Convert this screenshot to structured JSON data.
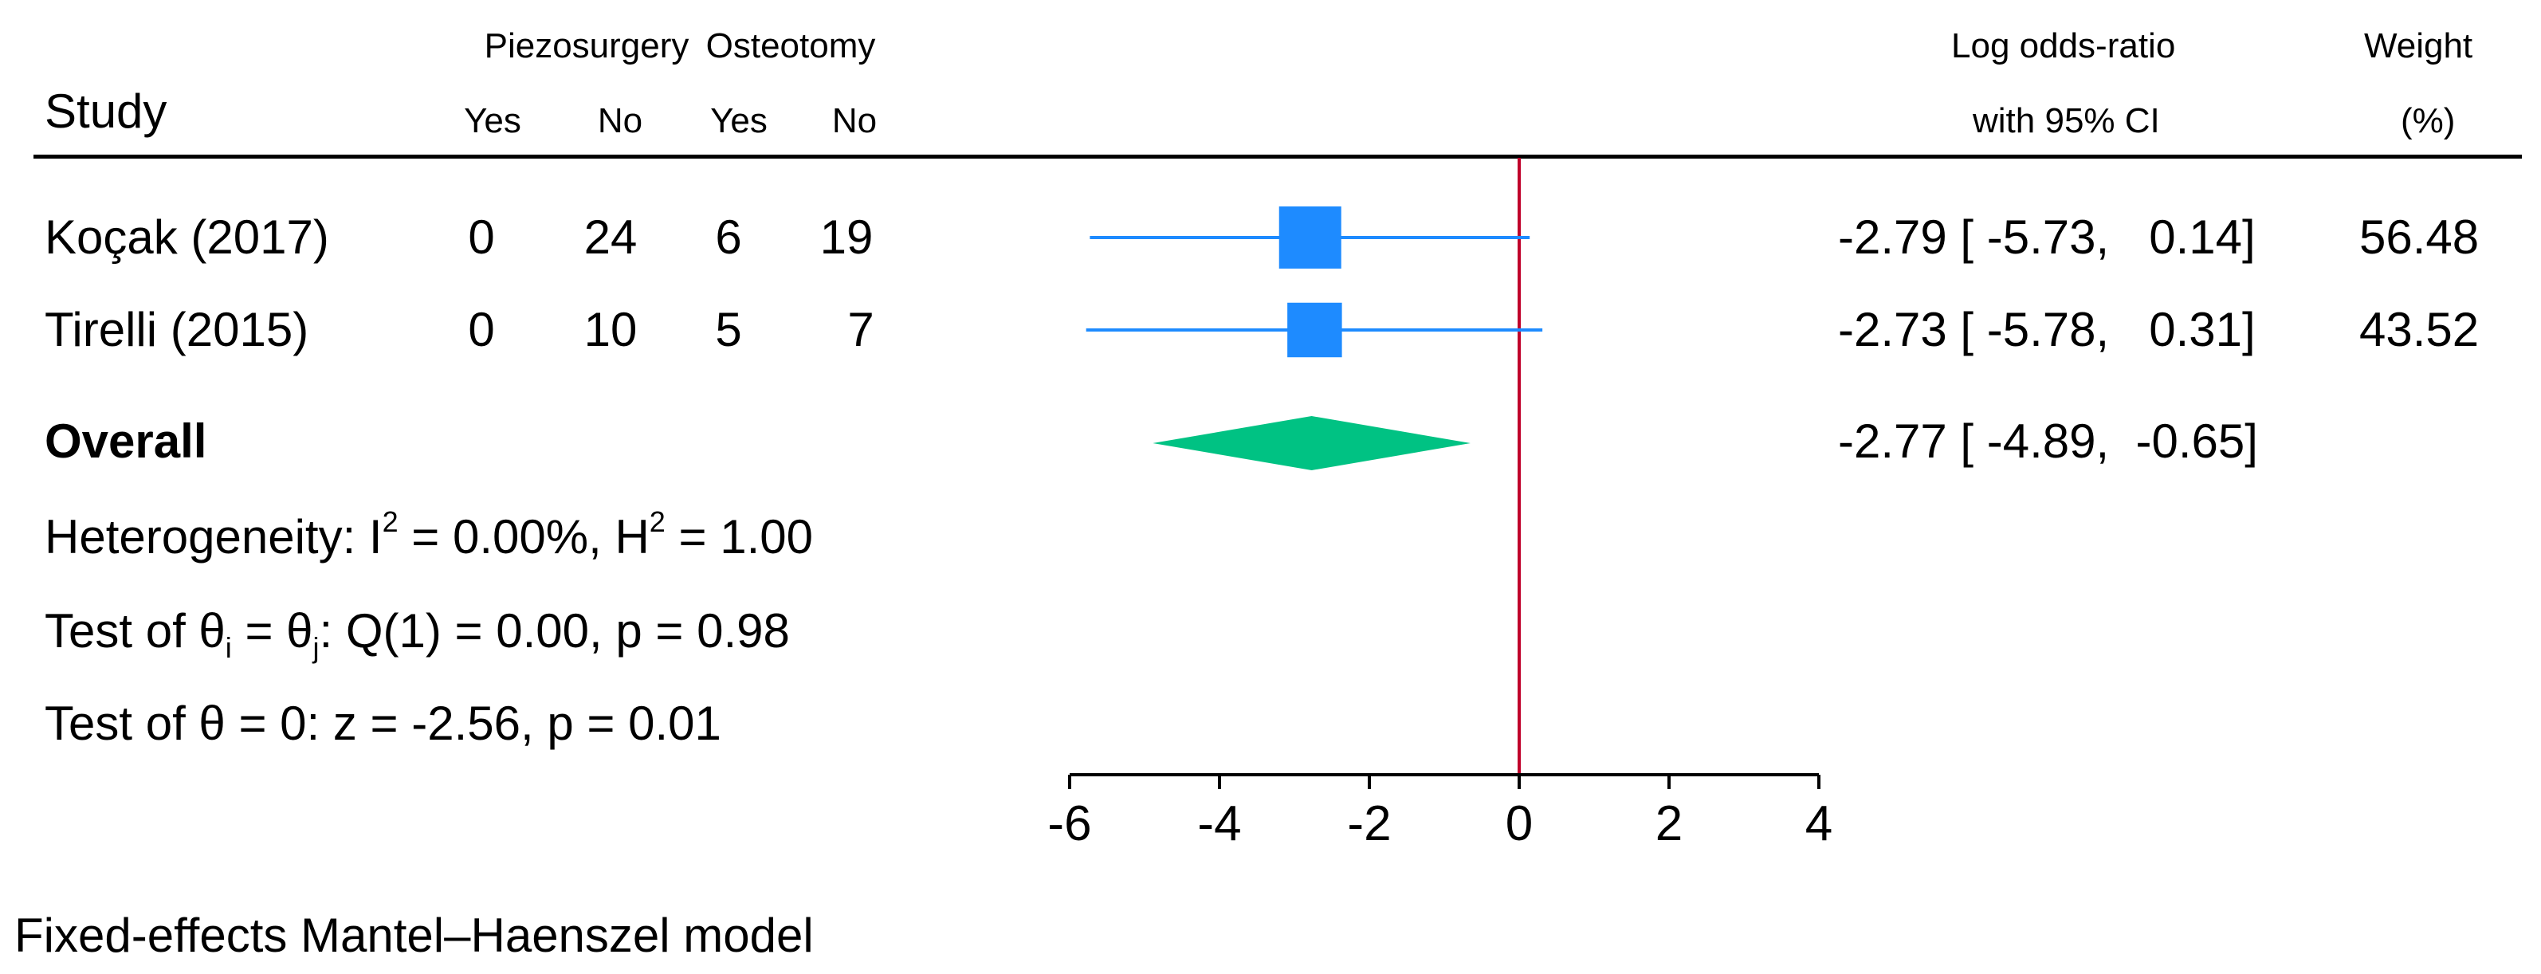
{
  "headers": {
    "study": "Study",
    "group1": "Piezosurgery",
    "group2": "Osteotomy",
    "yes": "Yes",
    "no": "No",
    "effect_line1": "Log odds-ratio",
    "effect_line2": "with 95% CI",
    "weight_line1": "Weight",
    "weight_line2": "(%)"
  },
  "studies": [
    {
      "name": "Koçak (2017)",
      "piezo_yes": "0",
      "piezo_no": "24",
      "osteo_yes": "6",
      "osteo_no": "19",
      "ci_text": "-2.79 [ -5.73,   0.14]",
      "weight": "56.48"
    },
    {
      "name": "Tirelli (2015)",
      "piezo_yes": "0",
      "piezo_no": "10",
      "osteo_yes": "5",
      "osteo_no": "7",
      "ci_text": "-2.73 [ -5.78,   0.31]",
      "weight": "43.52"
    }
  ],
  "overall": {
    "label": "Overall",
    "ci_text": "-2.77 [ -4.89,  -0.65]"
  },
  "stats": {
    "het_prefix": "Heterogeneity: I",
    "het_sup1": "2",
    "het_mid": " = 0.00%, H",
    "het_sup2": "2",
    "het_suffix": " = 1.00",
    "test1_prefix": "Test of θ",
    "test1_sub1": "i",
    "test1_mid": " = θ",
    "test1_sub2": "j",
    "test1_suffix": ": Q(1) = 0.00, p = 0.98",
    "test2": "Test of θ = 0: z = -2.56, p = 0.01"
  },
  "footnote": "Fixed-effects Mantel–Haenszel model",
  "colors": {
    "marker": "#1e8bff",
    "diamond": "#00c283",
    "null_line": "#c0002a",
    "axis": "#000000"
  },
  "chart_data": {
    "type": "forest",
    "xlim": [
      -6,
      4
    ],
    "xticks": [
      -6,
      -4,
      -2,
      0,
      2,
      4
    ],
    "null_value": 0,
    "series": [
      {
        "name": "Koçak (2017)",
        "estimate": -2.79,
        "lower": -5.73,
        "upper": 0.14,
        "weight": 56.48
      },
      {
        "name": "Tirelli (2015)",
        "estimate": -2.73,
        "lower": -5.78,
        "upper": 0.31,
        "weight": 43.52
      }
    ],
    "overall": {
      "estimate": -2.77,
      "lower": -4.89,
      "upper": -0.65
    }
  }
}
